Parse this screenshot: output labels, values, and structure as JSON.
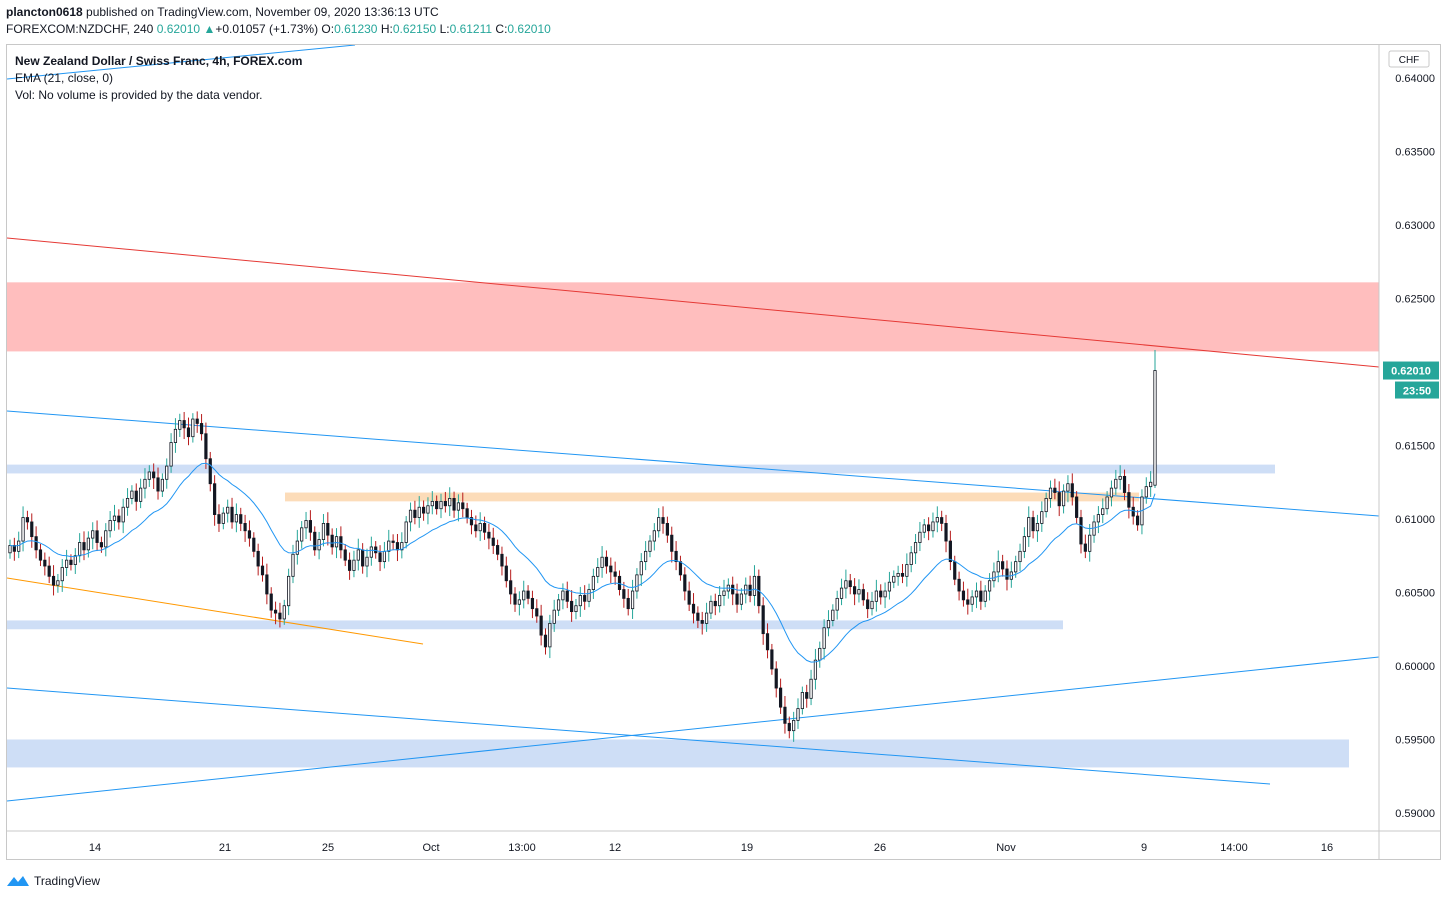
{
  "header": {
    "author": "plancton0618",
    "published_text": " published on TradingView.com, November 09, 2020 13:36:13 UTC",
    "symbol": "FOREXCOM:NZDCHF, 240",
    "last": "0.62010",
    "change_arrow": "▲",
    "change": "+0.01057 (+1.73%)",
    "o_label": "O:",
    "o": "0.61230",
    "h_label": "H:",
    "h": "0.62150",
    "l_label": "L:",
    "l": "0.61211",
    "c_label": "C:",
    "c": "0.62010"
  },
  "legend": {
    "title": "New Zealand Dollar / Swiss Franc, 4h, FOREX.com",
    "ema": "EMA (21, close, 0)",
    "vol": "Vol: No volume is provided by the data vendor."
  },
  "footer": {
    "brand": "TradingView",
    "logo_icon": "tradingview-logo-icon"
  },
  "colors": {
    "up": "#26a69a",
    "down": "#b71c1c",
    "candle_body": "#131722",
    "ema": "#2196f3",
    "resistance_zone": "#ffb3b3",
    "support_zone": "#c5d8f5",
    "orange_zone": "#fbd6ad",
    "red_line": "#e53935",
    "blue_line": "#2196f3",
    "orange_line": "#ff9800",
    "price_badge": "#26a69a"
  },
  "chart_data": {
    "type": "candlestick",
    "symbol": "NZDCHF",
    "timeframe": "4h",
    "price_currency": "CHF",
    "ylim": [
      0.589,
      0.6415
    ],
    "y_ticks": [
      "0.64000",
      "0.63500",
      "0.63000",
      "0.62500",
      "0.62000",
      "0.61500",
      "0.61000",
      "0.60500",
      "0.60000",
      "0.59500",
      "0.59000"
    ],
    "x_ticks": [
      "14",
      "21",
      "25",
      "Oct",
      "13:00",
      "12",
      "19",
      "26",
      "Nov",
      "9",
      "14:00",
      "16"
    ],
    "last_price_label": "0.62010",
    "countdown_label": "23:50",
    "zones": [
      {
        "kind": "resistance",
        "price_low": 0.6214,
        "price_high": 0.6261
      },
      {
        "kind": "support",
        "price_low": 0.6131,
        "price_high": 0.6137
      },
      {
        "kind": "support-orange",
        "price_low": 0.6112,
        "price_high": 0.6118
      },
      {
        "kind": "support",
        "price_low": 0.6025,
        "price_high": 0.6031
      },
      {
        "kind": "support",
        "price_low": 0.5931,
        "price_high": 0.595
      }
    ],
    "closes": [
      0.6082,
      0.6078,
      0.6085,
      0.6101,
      0.6098,
      0.6088,
      0.6079,
      0.6072,
      0.6068,
      0.6061,
      0.6055,
      0.6058,
      0.6067,
      0.6072,
      0.6069,
      0.6075,
      0.6084,
      0.6079,
      0.6087,
      0.6092,
      0.6084,
      0.6081,
      0.6092,
      0.6099,
      0.6102,
      0.6098,
      0.6108,
      0.6114,
      0.6119,
      0.6112,
      0.6121,
      0.6127,
      0.6132,
      0.6128,
      0.6119,
      0.6127,
      0.6136,
      0.6152,
      0.6161,
      0.6167,
      0.6162,
      0.6156,
      0.6168,
      0.6165,
      0.6158,
      0.6141,
      0.6124,
      0.6103,
      0.6097,
      0.6104,
      0.6108,
      0.6098,
      0.6103,
      0.6097,
      0.6092,
      0.6087,
      0.6078,
      0.6068,
      0.6062,
      0.6049,
      0.6038,
      0.6036,
      0.6032,
      0.6041,
      0.6061,
      0.6076,
      0.6085,
      0.6094,
      0.6099,
      0.6091,
      0.6079,
      0.6086,
      0.6097,
      0.6089,
      0.6081,
      0.6088,
      0.6079,
      0.6072,
      0.6065,
      0.6072,
      0.6079,
      0.6068,
      0.6074,
      0.6081,
      0.6077,
      0.6071,
      0.6078,
      0.6085,
      0.6084,
      0.6079,
      0.6084,
      0.6098,
      0.6106,
      0.6101,
      0.6108,
      0.6104,
      0.6109,
      0.6112,
      0.6107,
      0.6112,
      0.6109,
      0.6114,
      0.6106,
      0.6111,
      0.6107,
      0.6101,
      0.6096,
      0.6092,
      0.6097,
      0.6091,
      0.6087,
      0.6082,
      0.6076,
      0.6068,
      0.6058,
      0.6049,
      0.6042,
      0.6045,
      0.6051,
      0.6046,
      0.6039,
      0.6034,
      0.6021,
      0.6013,
      0.6029,
      0.6038,
      0.6045,
      0.6051,
      0.6044,
      0.6037,
      0.6041,
      0.6048,
      0.6044,
      0.6052,
      0.6061,
      0.6067,
      0.6074,
      0.6068,
      0.6064,
      0.6061,
      0.6052,
      0.6046,
      0.6039,
      0.6051,
      0.6062,
      0.6071,
      0.6078,
      0.6085,
      0.6092,
      0.6101,
      0.6097,
      0.6089,
      0.6078,
      0.6071,
      0.6062,
      0.6051,
      0.6042,
      0.6036,
      0.6031,
      0.6029,
      0.6036,
      0.6044,
      0.6041,
      0.6048,
      0.6051,
      0.6055,
      0.6049,
      0.6042,
      0.6049,
      0.6055,
      0.6048,
      0.6061,
      0.6041,
      0.6022,
      0.6011,
      0.5998,
      0.5985,
      0.5972,
      0.5961,
      0.5956,
      0.5963,
      0.5971,
      0.5982,
      0.5978,
      0.5991,
      0.6004,
      0.6012,
      0.6026,
      0.6031,
      0.6038,
      0.6046,
      0.6053,
      0.6058,
      0.6054,
      0.6049,
      0.6052,
      0.6045,
      0.6039,
      0.6044,
      0.6051,
      0.6047,
      0.6051,
      0.6057,
      0.6061,
      0.6063,
      0.6061,
      0.6069,
      0.6077,
      0.6084,
      0.6091,
      0.6096,
      0.6092,
      0.6098,
      0.6101,
      0.6097,
      0.6085,
      0.6071,
      0.6059,
      0.6051,
      0.6045,
      0.6042,
      0.6047,
      0.6051,
      0.6044,
      0.6051,
      0.6058,
      0.6064,
      0.6071,
      0.6066,
      0.6059,
      0.6064,
      0.6071,
      0.6078,
      0.6088,
      0.6101,
      0.6092,
      0.6097,
      0.6105,
      0.6114,
      0.6121,
      0.6118,
      0.6109,
      0.6119,
      0.6124,
      0.6115,
      0.6101,
      0.6083,
      0.6078,
      0.6089,
      0.6098,
      0.6103,
      0.6107,
      0.6115,
      0.6121,
      0.6127,
      0.6129,
      0.6118,
      0.6108,
      0.6102,
      0.6096,
      0.6115,
      0.6122,
      0.6125,
      0.6201
    ]
  }
}
